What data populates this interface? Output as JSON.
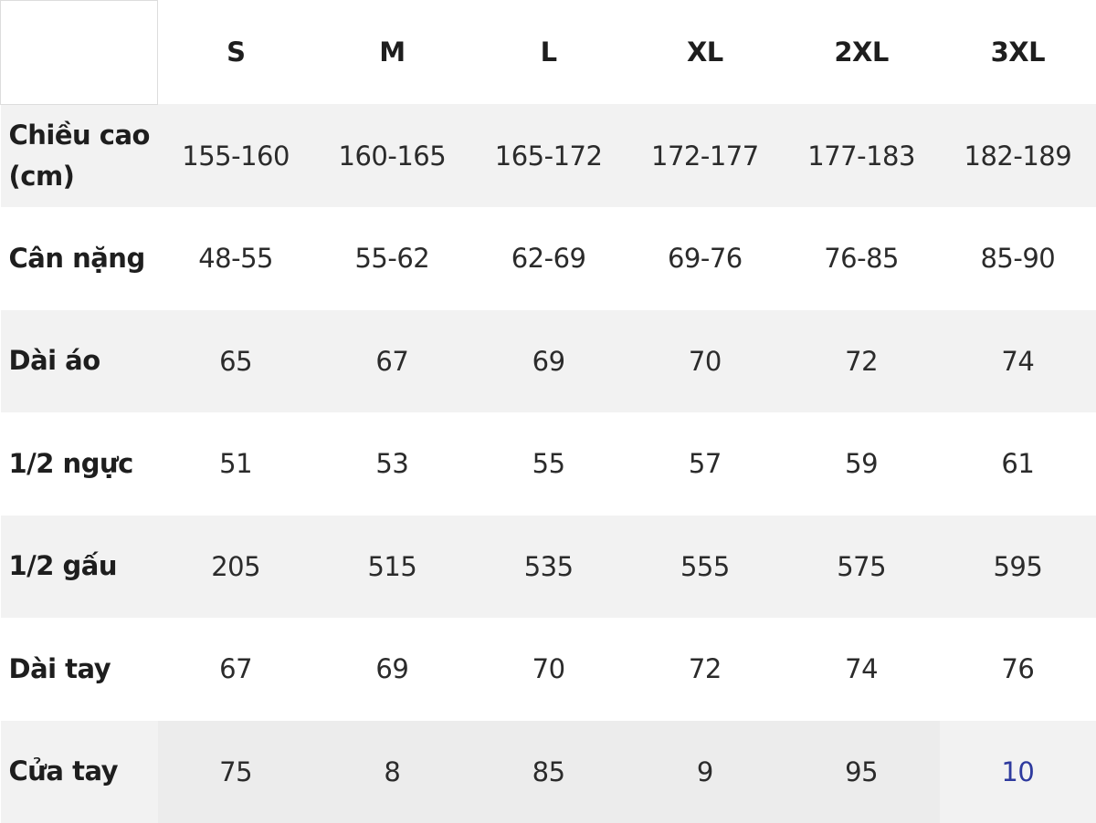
{
  "table": {
    "headers": [
      "",
      "S",
      "M",
      "L",
      "XL",
      "2XL",
      "3XL"
    ],
    "rows": [
      {
        "label": "Chiều cao (cm)",
        "values": [
          "155-160",
          "160-165",
          "165-172",
          "172-177",
          "177-183",
          "182-189"
        ]
      },
      {
        "label": "Cân nặng",
        "values": [
          "48-55",
          "55-62",
          "62-69",
          "69-76",
          "76-85",
          "85-90"
        ]
      },
      {
        "label": "Dài áo",
        "values": [
          "65",
          "67",
          "69",
          "70",
          "72",
          "74"
        ]
      },
      {
        "label": "1/2 ngực",
        "values": [
          "51",
          "53",
          "55",
          "57",
          "59",
          "61"
        ]
      },
      {
        "label": "1/2 gấu",
        "values": [
          "205",
          "515",
          "535",
          "555",
          "575",
          "595"
        ]
      },
      {
        "label": "Dài tay",
        "values": [
          "67",
          "69",
          "70",
          "72",
          "74",
          "76"
        ]
      },
      {
        "label": "Cửa tay",
        "values": [
          "75",
          "8",
          "85",
          "9",
          "95",
          "10"
        ]
      }
    ],
    "colors": {
      "highlight_text": "#2e3a9e",
      "stripe": "#f2f2f2"
    }
  }
}
